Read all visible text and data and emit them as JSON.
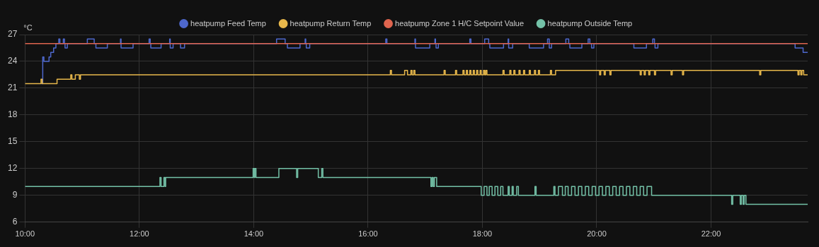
{
  "chart_data": {
    "type": "step",
    "ylabel": "°C",
    "xlim": [
      10,
      23.69
    ],
    "ylim": [
      6,
      27
    ],
    "xticks": [
      {
        "value": 10,
        "label": "10:00"
      },
      {
        "value": 12,
        "label": "12:00"
      },
      {
        "value": 14,
        "label": "14:00"
      },
      {
        "value": 16,
        "label": "16:00"
      },
      {
        "value": 18,
        "label": "18:00"
      },
      {
        "value": 20,
        "label": "20:00"
      },
      {
        "value": 22,
        "label": "22:00"
      }
    ],
    "yticks": [
      6,
      9,
      12,
      15,
      18,
      21,
      24,
      27
    ],
    "grid": true,
    "legend": "top",
    "marker": "none",
    "line_style": "solid",
    "series": [
      {
        "name": "heatpump Feed Temp",
        "color": "#4e68cd",
        "x": [
          10.28,
          10.31,
          10.33,
          10.42,
          10.45,
          10.5,
          10.54,
          10.59,
          10.61,
          10.67,
          10.69,
          10.7,
          10.74,
          11.09,
          11.21,
          11.24,
          11.44,
          11.67,
          11.68,
          11.89,
          12.17,
          12.19,
          12.2,
          12.38,
          12.53,
          12.54,
          12.59,
          12.72,
          12.79,
          14.4,
          14.55,
          14.59,
          14.81,
          14.9,
          14.91,
          14.92,
          14.98,
          16.31,
          16.33,
          16.82,
          16.83,
          17.08,
          17.17,
          17.18,
          17.19,
          17.23,
          17.78,
          17.8,
          18.04,
          18.11,
          18.13,
          18.37,
          18.45,
          18.46,
          18.53,
          18.82,
          19.07,
          19.14,
          19.17,
          19.21,
          19.46,
          19.51,
          19.53,
          19.74,
          19.85,
          19.88,
          19.91,
          19.95,
          20.65,
          20.87,
          20.98,
          21.01,
          21.02,
          21.07,
          23.47,
          23.61,
          23.69
        ],
        "values": [
          21.5,
          24.5,
          24,
          24.5,
          25,
          25.5,
          26,
          26.5,
          26,
          26.5,
          26,
          25.5,
          26,
          26.5,
          26,
          25.5,
          26,
          26.5,
          25.5,
          26,
          26.5,
          26,
          25.5,
          26,
          26.5,
          25.5,
          26,
          25.5,
          26,
          26.5,
          26,
          25.5,
          26,
          26.5,
          26,
          25.5,
          26,
          26.5,
          26,
          26.5,
          25.5,
          26,
          26.5,
          26,
          25.5,
          26,
          26.5,
          26,
          26.5,
          26,
          25.5,
          26,
          26.5,
          25.5,
          26,
          25.5,
          26,
          26.5,
          25.5,
          26,
          26.5,
          26,
          25.5,
          26,
          26.5,
          26,
          25.5,
          26,
          25.5,
          26,
          26.5,
          26,
          25.5,
          26,
          25.5,
          25,
          25
        ]
      },
      {
        "name": "heatpump Return Temp",
        "color": "#e8b84b",
        "x": [
          10,
          10.28,
          10.3,
          10.56,
          10.8,
          10.82,
          10.88,
          10.95,
          10.97,
          16.39,
          16.41,
          16.64,
          16.67,
          16.69,
          16.75,
          16.77,
          16.8,
          16.82,
          17.33,
          17.35,
          17.53,
          17.55,
          17.66,
          17.68,
          17.72,
          17.74,
          17.78,
          17.8,
          17.84,
          17.86,
          17.9,
          17.92,
          17.96,
          17.98,
          18.02,
          18.04,
          18.06,
          18.08,
          18.36,
          18.38,
          18.48,
          18.5,
          18.55,
          18.57,
          18.64,
          18.66,
          18.72,
          18.74,
          18.82,
          18.84,
          18.91,
          18.93,
          18.98,
          19,
          19.19,
          19.21,
          19.28,
          20.05,
          20.07,
          20.13,
          20.15,
          20.23,
          20.25,
          20.76,
          20.78,
          20.83,
          20.85,
          20.91,
          20.93,
          21.01,
          21.03,
          21.3,
          21.32,
          21.5,
          21.52,
          22.85,
          22.87,
          23.52,
          23.54,
          23.57,
          23.59,
          23.62,
          23.64,
          23.69
        ],
        "values": [
          21.5,
          22,
          21.5,
          22,
          22.5,
          22,
          22.5,
          22,
          22.5,
          23,
          22.5,
          23,
          23,
          22.5,
          23,
          22.5,
          23,
          22.5,
          23,
          22.5,
          23,
          22.5,
          23,
          22.5,
          23,
          22.5,
          23,
          22.5,
          23,
          22.5,
          23,
          22.5,
          23,
          22.5,
          23,
          22.5,
          23,
          22.5,
          23,
          22.5,
          23,
          22.5,
          23,
          22.5,
          23,
          22.5,
          23,
          22.5,
          23,
          22.5,
          23,
          22.5,
          23,
          22.5,
          23,
          22.5,
          23,
          22.5,
          23,
          22.5,
          23,
          22.5,
          23,
          22.5,
          23,
          22.5,
          23,
          22.5,
          23,
          22.5,
          23,
          22.5,
          23,
          22.5,
          23,
          22.5,
          23,
          22.5,
          23,
          22.5,
          23,
          22.5,
          22.5,
          22.5
        ]
      },
      {
        "name": "heatpump Zone 1 H/C Setpoint Value",
        "color": "#e0654f",
        "x": [
          10,
          23.69
        ],
        "values": [
          26,
          26
        ]
      },
      {
        "name": "heatpump Outside Temp",
        "color": "#74c2a8",
        "x": [
          10,
          12.36,
          12.38,
          12.43,
          12.45,
          12.46,
          13.99,
          14.01,
          14.02,
          14.04,
          14.44,
          14.75,
          14.77,
          15.13,
          15.19,
          15.21,
          17.1,
          17.12,
          17.14,
          17.16,
          17.2,
          17.98,
          18.03,
          18.08,
          18.12,
          18.17,
          18.22,
          18.27,
          18.32,
          18.36,
          18.45,
          18.47,
          18.52,
          18.54,
          18.6,
          18.63,
          18.92,
          18.94,
          19.25,
          19.27,
          19.33,
          19.4,
          19.45,
          19.5,
          19.56,
          19.62,
          19.68,
          19.74,
          19.8,
          19.86,
          19.92,
          19.98,
          20.04,
          20.1,
          20.16,
          20.22,
          20.28,
          20.34,
          20.4,
          20.46,
          20.52,
          20.58,
          20.64,
          20.7,
          20.76,
          20.82,
          20.88,
          20.96,
          22.36,
          22.38,
          22.51,
          22.53,
          22.56,
          22.58,
          22.61,
          23.69
        ],
        "values": [
          10,
          11,
          10,
          11,
          10,
          11,
          12,
          11,
          12,
          11,
          12,
          11,
          12,
          11,
          12,
          11,
          10,
          11,
          10,
          11,
          10,
          9,
          10,
          9,
          10,
          9,
          10,
          9,
          10,
          9,
          10,
          9,
          10,
          9,
          10,
          9,
          10,
          9,
          10,
          9,
          10,
          9,
          10,
          9,
          10,
          9,
          10,
          9,
          10,
          9,
          10,
          9,
          10,
          9,
          10,
          9,
          10,
          9,
          10,
          9,
          10,
          9,
          10,
          9,
          10,
          9,
          10,
          9,
          8,
          9,
          8,
          9,
          8,
          9,
          8,
          8
        ]
      }
    ]
  }
}
